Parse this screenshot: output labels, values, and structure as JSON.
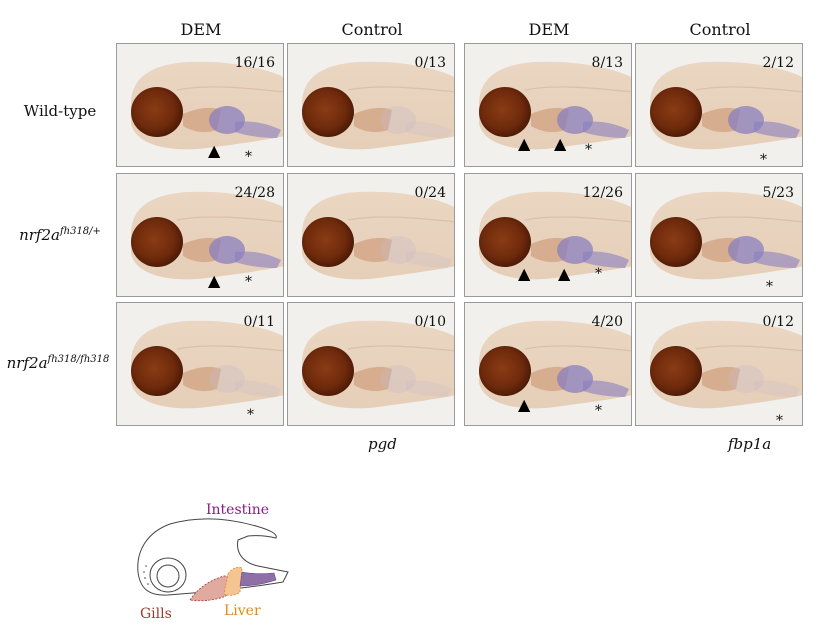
{
  "columns": [
    {
      "label": "DEM"
    },
    {
      "label": "Control"
    },
    {
      "label": "DEM"
    },
    {
      "label": "Control"
    }
  ],
  "rows": [
    {
      "label": "Wild-type",
      "allele_base": "",
      "allele_sup": ""
    },
    {
      "label": "",
      "allele_base": "nrf2a",
      "allele_sup": "fh318/+"
    },
    {
      "label": "",
      "allele_base": "nrf2a",
      "allele_sup": "fh318/fh318"
    }
  ],
  "genes": {
    "left": "pgd",
    "right": "fbp1a"
  },
  "panels": [
    [
      {
        "ratio": "16/16"
      },
      {
        "ratio": "0/13"
      },
      {
        "ratio": "8/13"
      },
      {
        "ratio": "2/12"
      }
    ],
    [
      {
        "ratio": "24/28"
      },
      {
        "ratio": "0/24"
      },
      {
        "ratio": "12/26"
      },
      {
        "ratio": "5/23"
      }
    ],
    [
      {
        "ratio": "0/11"
      },
      {
        "ratio": "0/10"
      },
      {
        "ratio": "4/20"
      },
      {
        "ratio": "0/12"
      }
    ]
  ],
  "schematic": {
    "intestine": "Intestine",
    "gills": "Gills",
    "liver": "Liver",
    "colors": {
      "intestine": "#8b1a8b",
      "gills": "#9c3b2e",
      "liver": "#e08a1e"
    }
  },
  "marks": {
    "arrow": "▲",
    "asterisk": "*"
  }
}
